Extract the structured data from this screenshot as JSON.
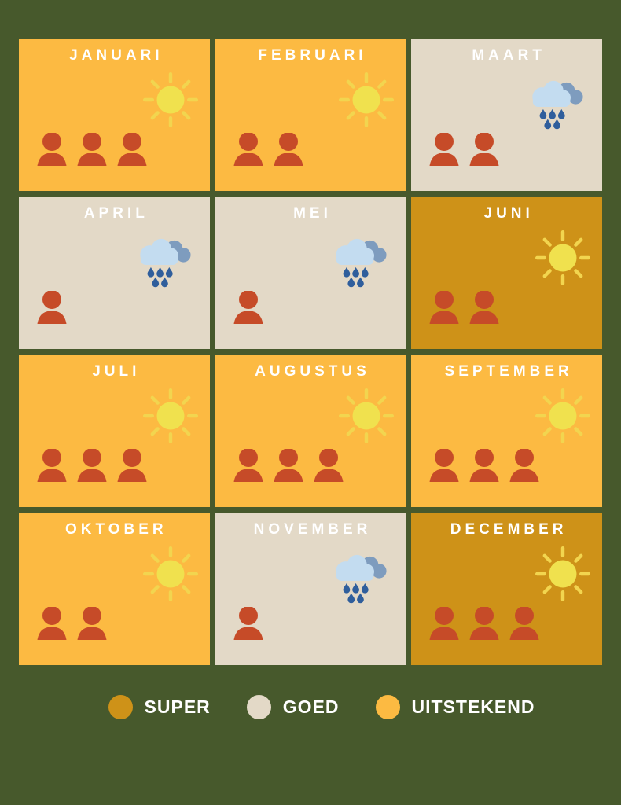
{
  "poster": {
    "background_color": "#47592C",
    "text_color": "#FFFFFF"
  },
  "ratings": {
    "super": {
      "label": "SUPER",
      "color": "#CE9218"
    },
    "goed": {
      "label": "GOED",
      "color": "#E3D9C7"
    },
    "uitstekend": {
      "label": "UITSTEKEND",
      "color": "#FCBA42"
    }
  },
  "legend": {
    "items": [
      {
        "label": "SUPER",
        "rating": "super"
      },
      {
        "label": "GOED",
        "rating": "goed"
      },
      {
        "label": "UITSTEKEND",
        "rating": "uitstekend"
      }
    ]
  },
  "months": [
    {
      "name": "JANUARI",
      "rating": "uitstekend",
      "weather": "sun",
      "people": 3
    },
    {
      "name": "FEBRUARI",
      "rating": "uitstekend",
      "weather": "sun",
      "people": 2
    },
    {
      "name": "MAART",
      "rating": "goed",
      "weather": "rain",
      "people": 2
    },
    {
      "name": "APRIL",
      "rating": "goed",
      "weather": "rain",
      "people": 1
    },
    {
      "name": "MEI",
      "rating": "goed",
      "weather": "rain",
      "people": 1
    },
    {
      "name": "JUNI",
      "rating": "super",
      "weather": "sun",
      "people": 2
    },
    {
      "name": "JULI",
      "rating": "uitstekend",
      "weather": "sun",
      "people": 3
    },
    {
      "name": "AUGUSTUS",
      "rating": "uitstekend",
      "weather": "sun",
      "people": 3
    },
    {
      "name": "SEPTEMBER",
      "rating": "uitstekend",
      "weather": "sun",
      "people": 3
    },
    {
      "name": "OKTOBER",
      "rating": "uitstekend",
      "weather": "sun",
      "people": 2
    },
    {
      "name": "NOVEMBER",
      "rating": "goed",
      "weather": "rain",
      "people": 1
    },
    {
      "name": "DECEMBER",
      "rating": "super",
      "weather": "sun",
      "people": 3
    }
  ],
  "icon_colors": {
    "sun_disc": "#F0E14E",
    "sun_rays": "#F2D54F",
    "cloud_front": "#C3DCF0",
    "cloud_back": "#7E9CBE",
    "rain_drops": "#2F5E9C",
    "person": "#C64B28"
  },
  "chart_data": {
    "type": "heatmap",
    "title": "",
    "categories": [
      "JANUARI",
      "FEBRUARI",
      "MAART",
      "APRIL",
      "MEI",
      "JUNI",
      "JULI",
      "AUGUSTUS",
      "SEPTEMBER",
      "OKTOBER",
      "NOVEMBER",
      "DECEMBER"
    ],
    "series": [
      {
        "name": "rating",
        "values": [
          "uitstekend",
          "uitstekend",
          "goed",
          "goed",
          "goed",
          "super",
          "uitstekend",
          "uitstekend",
          "uitstekend",
          "uitstekend",
          "goed",
          "super"
        ]
      },
      {
        "name": "weather",
        "values": [
          "sun",
          "sun",
          "rain",
          "rain",
          "rain",
          "sun",
          "sun",
          "sun",
          "sun",
          "sun",
          "rain",
          "sun"
        ]
      },
      {
        "name": "people",
        "values": [
          3,
          2,
          2,
          1,
          1,
          2,
          3,
          3,
          3,
          2,
          1,
          3
        ]
      }
    ],
    "legend_entries": [
      "SUPER",
      "GOED",
      "UITSTEKEND"
    ],
    "legend_position": "bottom"
  }
}
